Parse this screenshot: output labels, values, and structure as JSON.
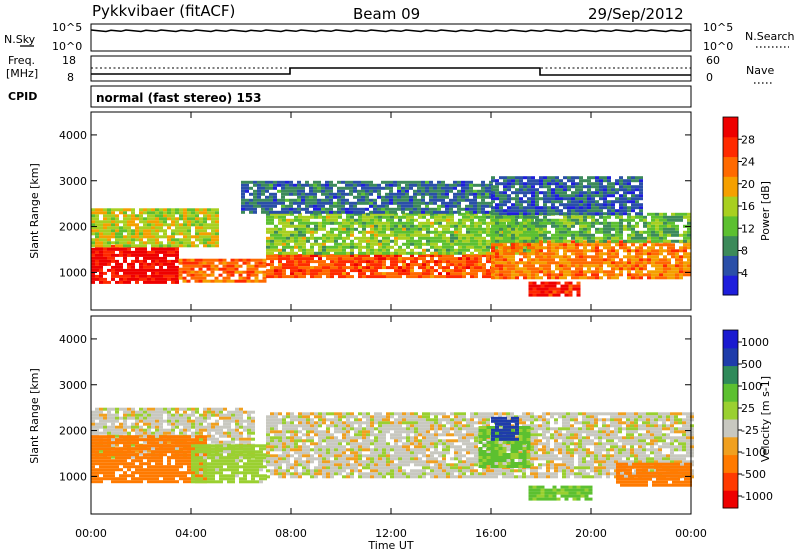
{
  "header": {
    "station": "Pykkvibaer (fitACF)",
    "beam": "Beam 09",
    "date": "29/Sep/2012"
  },
  "noise_panel": {
    "left_label": "N.Sky",
    "right_label": "N.Search",
    "ticks": [
      "10^5",
      "10^0"
    ]
  },
  "freq_panel": {
    "left_label": "Freq.",
    "left_unit": "[MHz]",
    "right_label": "Nave",
    "left_ticks": [
      "18",
      "8"
    ],
    "right_ticks": [
      "60",
      "0"
    ]
  },
  "cpid": {
    "label": "CPID",
    "program": "normal (fast stereo) 153"
  },
  "colors": {
    "power_scale": [
      "#1e1edc",
      "#2a4fa8",
      "#3c8a5a",
      "#5cc030",
      "#a8d020",
      "#f5a000",
      "#ff6a00",
      "#ff2a00",
      "#ee0000"
    ],
    "velocity_scale": [
      "#ee0000",
      "#ff3a00",
      "#ff7a00",
      "#f0a020",
      "#c8c8c0",
      "#9ad030",
      "#5cc030",
      "#2f8a5a",
      "#1e3caa",
      "#1a1ad0"
    ]
  },
  "chart_data": [
    {
      "type": "heatmap",
      "panel": "power",
      "ylabel": "Slant Range [km]",
      "xlabel": "Time UT",
      "x_range_hours": [
        0,
        24
      ],
      "ylim": [
        180,
        4500
      ],
      "yticks": [
        "1000",
        "2000",
        "3000",
        "4000"
      ],
      "colorbar": {
        "label": "Power [dB]",
        "range": [
          0,
          32
        ],
        "ticks": [
          "4",
          "8",
          "12",
          "16",
          "20",
          "24",
          "28"
        ]
      },
      "echo_regions": [
        {
          "start_hour": 0.0,
          "end_hour": 3.5,
          "range_min_km": 800,
          "range_max_km": 1600,
          "power_db": 30
        },
        {
          "start_hour": 0.0,
          "end_hour": 5.0,
          "range_min_km": 1600,
          "range_max_km": 2400,
          "power_db": 16
        },
        {
          "start_hour": 3.5,
          "end_hour": 7.0,
          "range_min_km": 800,
          "range_max_km": 1300,
          "power_db": 24
        },
        {
          "start_hour": 7.0,
          "end_hour": 16.0,
          "range_min_km": 900,
          "range_max_km": 1400,
          "power_db": 25
        },
        {
          "start_hour": 7.0,
          "end_hour": 18.0,
          "range_min_km": 1400,
          "range_max_km": 2300,
          "power_db": 14
        },
        {
          "start_hour": 6.0,
          "end_hour": 16.0,
          "range_min_km": 2300,
          "range_max_km": 3000,
          "power_db": 7
        },
        {
          "start_hour": 16.0,
          "end_hour": 24.0,
          "range_min_km": 900,
          "range_max_km": 1700,
          "power_db": 22
        },
        {
          "start_hour": 16.0,
          "end_hour": 24.0,
          "range_min_km": 1700,
          "range_max_km": 2300,
          "power_db": 12
        },
        {
          "start_hour": 17.5,
          "end_hour": 19.5,
          "range_min_km": 500,
          "range_max_km": 800,
          "power_db": 28
        },
        {
          "start_hour": 16.0,
          "end_hour": 22.0,
          "range_min_km": 2300,
          "range_max_km": 3100,
          "power_db": 6
        }
      ]
    },
    {
      "type": "heatmap",
      "panel": "velocity",
      "ylabel": "Slant Range [km]",
      "xlabel": "Time UT",
      "x_range_hours": [
        0,
        24
      ],
      "ylim": [
        180,
        4500
      ],
      "yticks": [
        "1000",
        "2000",
        "3000",
        "4000"
      ],
      "xticks": [
        "00:00",
        "04:00",
        "08:00",
        "12:00",
        "16:00",
        "20:00",
        "00:00"
      ],
      "colorbar": {
        "label": "Velocity [m s-1]",
        "ticks": [
          "1000",
          "500",
          "100",
          "25",
          "-25",
          "-100",
          "-500",
          "-1000"
        ]
      },
      "echo_regions": [
        {
          "start_hour": 0.0,
          "end_hour": 6.5,
          "range_min_km": 1400,
          "range_max_km": 2500,
          "velocity": 0
        },
        {
          "start_hour": 0.0,
          "end_hour": 4.5,
          "range_min_km": 900,
          "range_max_km": 1900,
          "velocity": -200
        },
        {
          "start_hour": 4.0,
          "end_hour": 7.0,
          "range_min_km": 900,
          "range_max_km": 1700,
          "velocity": 60
        },
        {
          "start_hour": 7.0,
          "end_hour": 24.0,
          "range_min_km": 1000,
          "range_max_km": 2400,
          "velocity": 0
        },
        {
          "start_hour": 15.5,
          "end_hour": 17.5,
          "range_min_km": 1200,
          "range_max_km": 2100,
          "velocity": 120
        },
        {
          "start_hour": 16.0,
          "end_hour": 17.0,
          "range_min_km": 1800,
          "range_max_km": 2300,
          "velocity": 600
        },
        {
          "start_hour": 17.5,
          "end_hour": 20.0,
          "range_min_km": 500,
          "range_max_km": 800,
          "velocity": 120
        },
        {
          "start_hour": 21.0,
          "end_hour": 24.0,
          "range_min_km": 800,
          "range_max_km": 1300,
          "velocity": -400
        }
      ]
    }
  ]
}
